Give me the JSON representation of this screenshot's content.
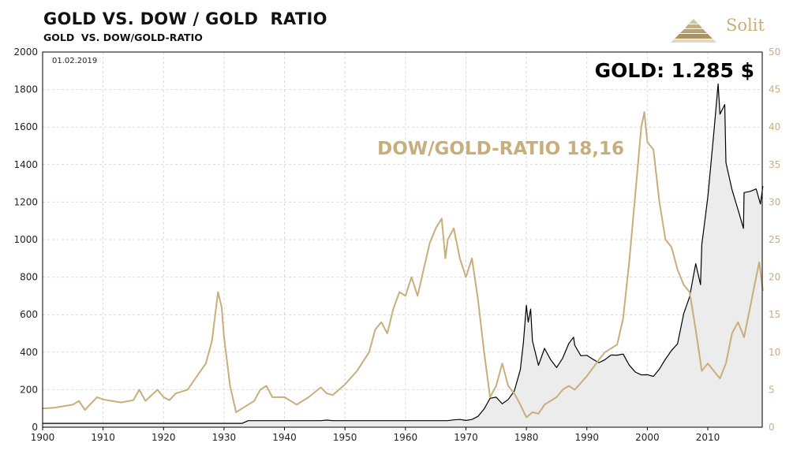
{
  "header": {
    "title": "GOLD VS. DOW / GOLD  RATIO",
    "subtitle": "GOLD  VS. DOW/GOLD-RATIO"
  },
  "logo": {
    "text": "Solit",
    "icon": "pyramid-icon"
  },
  "colors": {
    "gold_line": "#000000",
    "ratio_line": "#c8ae7b",
    "area_fill": "#ececec",
    "grid": "#d9d9d9"
  },
  "chart_data": {
    "type": "line",
    "date_label": "01.02.2019",
    "xlim": [
      1900,
      2019
    ],
    "x_ticks": [
      1900,
      1910,
      1920,
      1930,
      1940,
      1950,
      1960,
      1970,
      1980,
      1990,
      2000,
      2010
    ],
    "left_axis": {
      "ylim": [
        0,
        2000
      ],
      "ticks": [
        0,
        200,
        400,
        600,
        800,
        1000,
        1200,
        1400,
        1600,
        1800,
        2000
      ]
    },
    "right_axis": {
      "ylim": [
        0,
        50
      ],
      "ticks": [
        0,
        5,
        10,
        15,
        20,
        25,
        30,
        35,
        40,
        45,
        50
      ]
    },
    "grid": true,
    "annotations": {
      "gold": "GOLD: 1.285 $",
      "ratio": "DOW/GOLD-RATIO 18,16"
    },
    "series": [
      {
        "name": "GOLD",
        "axis": "left",
        "style": "area",
        "points": [
          [
            1900,
            20.7
          ],
          [
            1933,
            20.7
          ],
          [
            1934,
            35
          ],
          [
            1946,
            35
          ],
          [
            1947,
            38
          ],
          [
            1948,
            35
          ],
          [
            1967,
            35
          ],
          [
            1968,
            39
          ],
          [
            1969,
            41
          ],
          [
            1970,
            36
          ],
          [
            1971,
            41
          ],
          [
            1972,
            58
          ],
          [
            1973,
            97
          ],
          [
            1974,
            154
          ],
          [
            1975,
            160
          ],
          [
            1976,
            125
          ],
          [
            1977,
            148
          ],
          [
            1978,
            193
          ],
          [
            1979,
            306
          ],
          [
            1979.5,
            450
          ],
          [
            1980,
            650
          ],
          [
            1980.3,
            560
          ],
          [
            1980.7,
            630
          ],
          [
            1981,
            460
          ],
          [
            1982,
            330
          ],
          [
            1983,
            420
          ],
          [
            1984,
            360
          ],
          [
            1985,
            318
          ],
          [
            1986,
            368
          ],
          [
            1987,
            446
          ],
          [
            1987.8,
            480
          ],
          [
            1988,
            437
          ],
          [
            1989,
            381
          ],
          [
            1990,
            383
          ],
          [
            1991,
            362
          ],
          [
            1992,
            344
          ],
          [
            1993,
            360
          ],
          [
            1994,
            385
          ],
          [
            1995,
            384
          ],
          [
            1996,
            390
          ],
          [
            1997,
            331
          ],
          [
            1998,
            294
          ],
          [
            1999,
            279
          ],
          [
            2000,
            280
          ],
          [
            2001,
            271
          ],
          [
            2002,
            310
          ],
          [
            2003,
            363
          ],
          [
            2004,
            409
          ],
          [
            2005,
            445
          ],
          [
            2006,
            604
          ],
          [
            2007,
            696
          ],
          [
            2008,
            872
          ],
          [
            2008.8,
            760
          ],
          [
            2009,
            972
          ],
          [
            2010,
            1225
          ],
          [
            2011,
            1572
          ],
          [
            2011.7,
            1830
          ],
          [
            2012,
            1669
          ],
          [
            2012.8,
            1720
          ],
          [
            2013,
            1411
          ],
          [
            2014,
            1266
          ],
          [
            2015,
            1160
          ],
          [
            2015.9,
            1060
          ],
          [
            2016,
            1251
          ],
          [
            2017,
            1257
          ],
          [
            2018,
            1270
          ],
          [
            2018.7,
            1190
          ],
          [
            2019.1,
            1285
          ]
        ]
      },
      {
        "name": "DOW/GOLD-RATIO",
        "axis": "right",
        "style": "line",
        "points": [
          [
            1900,
            2.5
          ],
          [
            1902,
            2.6
          ],
          [
            1905,
            3.0
          ],
          [
            1906,
            3.5
          ],
          [
            1907,
            2.3
          ],
          [
            1909,
            4.0
          ],
          [
            1910,
            3.7
          ],
          [
            1913,
            3.3
          ],
          [
            1915,
            3.6
          ],
          [
            1916,
            5.0
          ],
          [
            1917,
            3.5
          ],
          [
            1919,
            5.0
          ],
          [
            1920,
            4.0
          ],
          [
            1921,
            3.6
          ],
          [
            1922,
            4.5
          ],
          [
            1924,
            5.0
          ],
          [
            1925,
            6.2
          ],
          [
            1927,
            8.5
          ],
          [
            1928,
            11.5
          ],
          [
            1929,
            18.0
          ],
          [
            1929.6,
            16.0
          ],
          [
            1930,
            12.0
          ],
          [
            1931,
            5.5
          ],
          [
            1932,
            2.0
          ],
          [
            1933,
            2.5
          ],
          [
            1935,
            3.5
          ],
          [
            1936,
            5.0
          ],
          [
            1937,
            5.5
          ],
          [
            1938,
            4.0
          ],
          [
            1940,
            4.0
          ],
          [
            1942,
            3.0
          ],
          [
            1944,
            4.0
          ],
          [
            1946,
            5.3
          ],
          [
            1947,
            4.5
          ],
          [
            1948,
            4.3
          ],
          [
            1950,
            5.7
          ],
          [
            1952,
            7.5
          ],
          [
            1954,
            10.0
          ],
          [
            1955,
            13.0
          ],
          [
            1956,
            14.0
          ],
          [
            1957,
            12.5
          ],
          [
            1958,
            15.8
          ],
          [
            1959,
            18.0
          ],
          [
            1960,
            17.5
          ],
          [
            1961,
            20.0
          ],
          [
            1962,
            17.5
          ],
          [
            1963,
            21.0
          ],
          [
            1964,
            24.5
          ],
          [
            1965,
            26.5
          ],
          [
            1966,
            27.8
          ],
          [
            1966.6,
            22.5
          ],
          [
            1967,
            25.0
          ],
          [
            1968,
            26.5
          ],
          [
            1969,
            22.5
          ],
          [
            1970,
            20.0
          ],
          [
            1971,
            22.5
          ],
          [
            1972,
            17.0
          ],
          [
            1973,
            10.0
          ],
          [
            1974,
            4.0
          ],
          [
            1975,
            5.5
          ],
          [
            1976,
            8.5
          ],
          [
            1977,
            5.5
          ],
          [
            1978,
            4.5
          ],
          [
            1979,
            3.0
          ],
          [
            1980,
            1.3
          ],
          [
            1981,
            2.0
          ],
          [
            1982,
            1.8
          ],
          [
            1983,
            3.0
          ],
          [
            1985,
            4.0
          ],
          [
            1986,
            5.0
          ],
          [
            1987,
            5.5
          ],
          [
            1988,
            5.0
          ],
          [
            1990,
            6.8
          ],
          [
            1992,
            9.0
          ],
          [
            1993,
            10.0
          ],
          [
            1995,
            11.0
          ],
          [
            1996,
            14.5
          ],
          [
            1997,
            22.0
          ],
          [
            1998,
            31.0
          ],
          [
            1999,
            40.0
          ],
          [
            1999.5,
            42.0
          ],
          [
            2000,
            38.0
          ],
          [
            2001,
            37.0
          ],
          [
            2002,
            30.0
          ],
          [
            2003,
            25.0
          ],
          [
            2004,
            24.0
          ],
          [
            2005,
            21.0
          ],
          [
            2006,
            19.0
          ],
          [
            2007,
            18.0
          ],
          [
            2008,
            13.0
          ],
          [
            2009,
            7.5
          ],
          [
            2010,
            8.5
          ],
          [
            2011,
            7.5
          ],
          [
            2012,
            6.5
          ],
          [
            2013,
            8.5
          ],
          [
            2014,
            12.5
          ],
          [
            2015,
            14.0
          ],
          [
            2016,
            12.0
          ],
          [
            2017,
            16.0
          ],
          [
            2018,
            20.0
          ],
          [
            2018.5,
            22.0
          ],
          [
            2019.1,
            18.16
          ]
        ]
      }
    ]
  }
}
